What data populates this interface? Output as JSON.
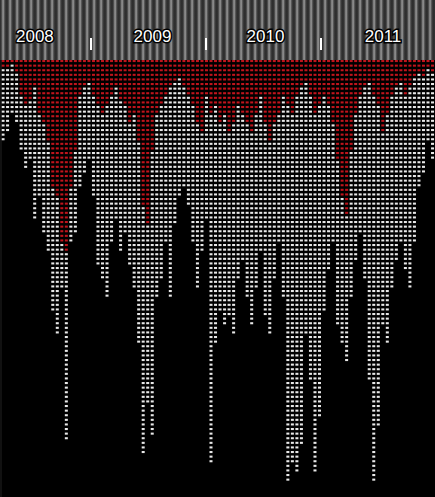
{
  "chart_data": {
    "type": "bar",
    "stacked": true,
    "grid": false,
    "tick_labels": "x",
    "categories": [
      null,
      null,
      null,
      null,
      null,
      null,
      null,
      "2008",
      null,
      null,
      null,
      null,
      null,
      null,
      null,
      null,
      null,
      null,
      null,
      null,
      null,
      null,
      null,
      null,
      null,
      null,
      null,
      null,
      null,
      null,
      null,
      null,
      null,
      "2009",
      null,
      null,
      null,
      null,
      null,
      null,
      null,
      null,
      null,
      null,
      null,
      null,
      null,
      null,
      null,
      null,
      null,
      null,
      null,
      null,
      null,
      null,
      null,
      null,
      "2010",
      null,
      null,
      null,
      null,
      null,
      null,
      null,
      null,
      null,
      null,
      null,
      null,
      null,
      null,
      null,
      null,
      null,
      null,
      null,
      null,
      null,
      null,
      null,
      null,
      null,
      "2011",
      null,
      null,
      null,
      null,
      null,
      null,
      null,
      null,
      null,
      null,
      null
    ],
    "ylim": [
      0,
      95
    ],
    "series": [
      {
        "color": "#c0141c",
        "values": [
          2,
          2,
          1,
          3,
          8,
          10,
          9,
          6,
          12,
          14,
          18,
          28,
          30,
          40,
          42,
          28,
          20,
          8,
          6,
          5,
          8,
          10,
          12,
          10,
          8,
          6,
          9,
          10,
          14,
          12,
          18,
          32,
          36,
          20,
          12,
          10,
          8,
          6,
          5,
          4,
          6,
          8,
          10,
          14,
          16,
          8,
          12,
          10,
          14,
          12,
          16,
          14,
          10,
          12,
          14,
          16,
          12,
          8,
          14,
          18,
          14,
          12,
          8,
          10,
          12,
          8,
          6,
          5,
          8,
          12,
          10,
          8,
          10,
          14,
          22,
          30,
          34,
          20,
          12,
          8,
          6,
          5,
          8,
          10,
          16,
          12,
          8,
          6,
          5,
          8,
          6,
          4,
          3,
          4,
          2,
          3
        ]
      },
      {
        "color": "#e8e8e8",
        "values": [
          16,
          14,
          11,
          11,
          12,
          14,
          13,
          29,
          18,
          24,
          24,
          27,
          30,
          10,
          41,
          12,
          18,
          20,
          19,
          17,
          22,
          35,
          36,
          42,
          32,
          29,
          33,
          28,
          31,
          38,
          44,
          54,
          39,
          62,
          40,
          38,
          32,
          46,
          31,
          26,
          22,
          24,
          30,
          36,
          26,
          27,
          76,
          52,
          41,
          46,
          40,
          46,
          38,
          32,
          38,
          42,
          38,
          34,
          42,
          42,
          34,
          28,
          44,
          82,
          76,
          82,
          78,
          55,
          62,
          78,
          68,
          47,
          36,
          26,
          36,
          32,
          32,
          32,
          32,
          30,
          42,
          65,
          84,
          70,
          42,
          50,
          42,
          38,
          35,
          38,
          44,
          36,
          25,
          21,
          16,
          19
        ]
      }
    ]
  }
}
